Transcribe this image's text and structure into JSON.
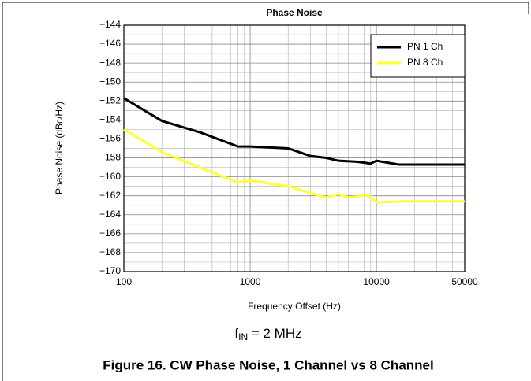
{
  "chart_data": {
    "type": "line",
    "title": "Phase Noise",
    "xlabel": "Frequency Offset (Hz)",
    "ylabel": "Phase Noise (dBc/Hz)",
    "annotation": {
      "base": "f",
      "sub": "IN",
      "rest": " = 2 MHz"
    },
    "caption": "Figure 16. CW Phase Noise, 1 Channel vs 8 Channel",
    "xscale": "log",
    "grid": true,
    "legend": "upper right",
    "xlim": [
      100,
      50000
    ],
    "xticks": [
      100,
      1000,
      10000,
      50000
    ],
    "ylim": [
      -170,
      -144
    ],
    "yticks": [
      {
        "value": -170,
        "label": "−170"
      },
      {
        "value": -168,
        "label": "−168"
      },
      {
        "value": -166,
        "label": "−166"
      },
      {
        "value": -164,
        "label": "−164"
      },
      {
        "value": -162,
        "label": "−162"
      },
      {
        "value": -160,
        "label": "−160"
      },
      {
        "value": -158,
        "label": "−158"
      },
      {
        "value": -156,
        "label": "−156"
      },
      {
        "value": -154,
        "label": "−154"
      },
      {
        "value": -152,
        "label": "−152"
      },
      {
        "value": -150,
        "label": "−150"
      },
      {
        "value": -148,
        "label": "−148"
      },
      {
        "value": -146,
        "label": "−146"
      },
      {
        "value": -144,
        "label": "−144"
      }
    ],
    "series": [
      {
        "name": "PN 1 Ch",
        "color": "#000000",
        "x": [
          100,
          200,
          400,
          800,
          1000,
          2000,
          3000,
          4000,
          5000,
          7000,
          9000,
          10000,
          15000,
          50000
        ],
        "values": [
          -151.7,
          -154.1,
          -155.3,
          -156.8,
          -156.8,
          -157.0,
          -157.8,
          -158.0,
          -158.3,
          -158.4,
          -158.6,
          -158.3,
          -158.7,
          -158.7
        ]
      },
      {
        "name": "PN 8 Ch",
        "color": "#ffff33",
        "x": [
          100,
          200,
          400,
          700,
          800,
          1000,
          2000,
          3000,
          4000,
          5000,
          6000,
          7000,
          8000,
          9000,
          10000,
          15000,
          50000
        ],
        "values": [
          -155.0,
          -157.4,
          -159.0,
          -160.3,
          -160.6,
          -160.4,
          -161.0,
          -161.7,
          -162.2,
          -161.8,
          -162.2,
          -162.1,
          -161.9,
          -162.1,
          -162.7,
          -162.6,
          -162.6
        ]
      }
    ]
  }
}
